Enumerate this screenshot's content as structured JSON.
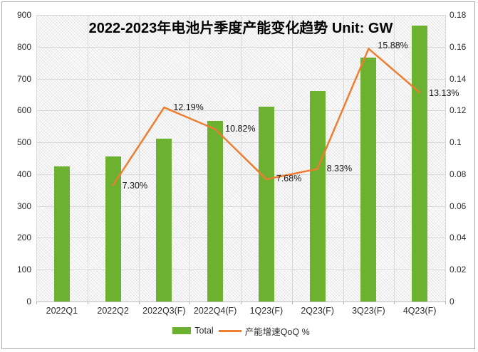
{
  "chart_data": {
    "type": "combo-bar-line",
    "title": "2022-2023年电池片季度产能变化趋势 Unit: GW",
    "unit": "GW",
    "categories": [
      "2022Q1",
      "2022Q2",
      "2022Q3(F)",
      "2022Q4(F)",
      "1Q23(F)",
      "2Q23(F)",
      "3Q23(F)",
      "4Q23(F)"
    ],
    "series": [
      {
        "name": "Total",
        "type": "bar",
        "axis": "left",
        "color": "#6cb12f",
        "values": [
          425,
          456,
          512,
          567,
          611,
          661,
          766,
          867
        ]
      },
      {
        "name": "产能增速QoQ %",
        "type": "line",
        "axis": "right",
        "color": "#ed7d31",
        "values": [
          null,
          0.073,
          0.1219,
          0.1082,
          0.0768,
          0.0833,
          0.1588,
          0.1313
        ],
        "point_labels": [
          null,
          "7.30%",
          "12.19%",
          "10.82%",
          "7.68%",
          "8.33%",
          "15.88%",
          "13.13%"
        ]
      }
    ],
    "left_axis": {
      "min": 0,
      "max": 900,
      "tick_labels": [
        "900",
        "800",
        "700",
        "600",
        "500",
        "400",
        "300",
        "200",
        "100",
        "0"
      ]
    },
    "right_axis": {
      "min": 0,
      "max": 0.18,
      "tick_labels": [
        "0.18",
        "0.16",
        "0.14",
        "0.12",
        "0.1",
        "0.08",
        "0.06",
        "0.04",
        "0.02",
        "0"
      ]
    },
    "legend": {
      "position": "bottom",
      "items": [
        "Total",
        "产能增速QoQ %"
      ]
    },
    "grid": true
  }
}
